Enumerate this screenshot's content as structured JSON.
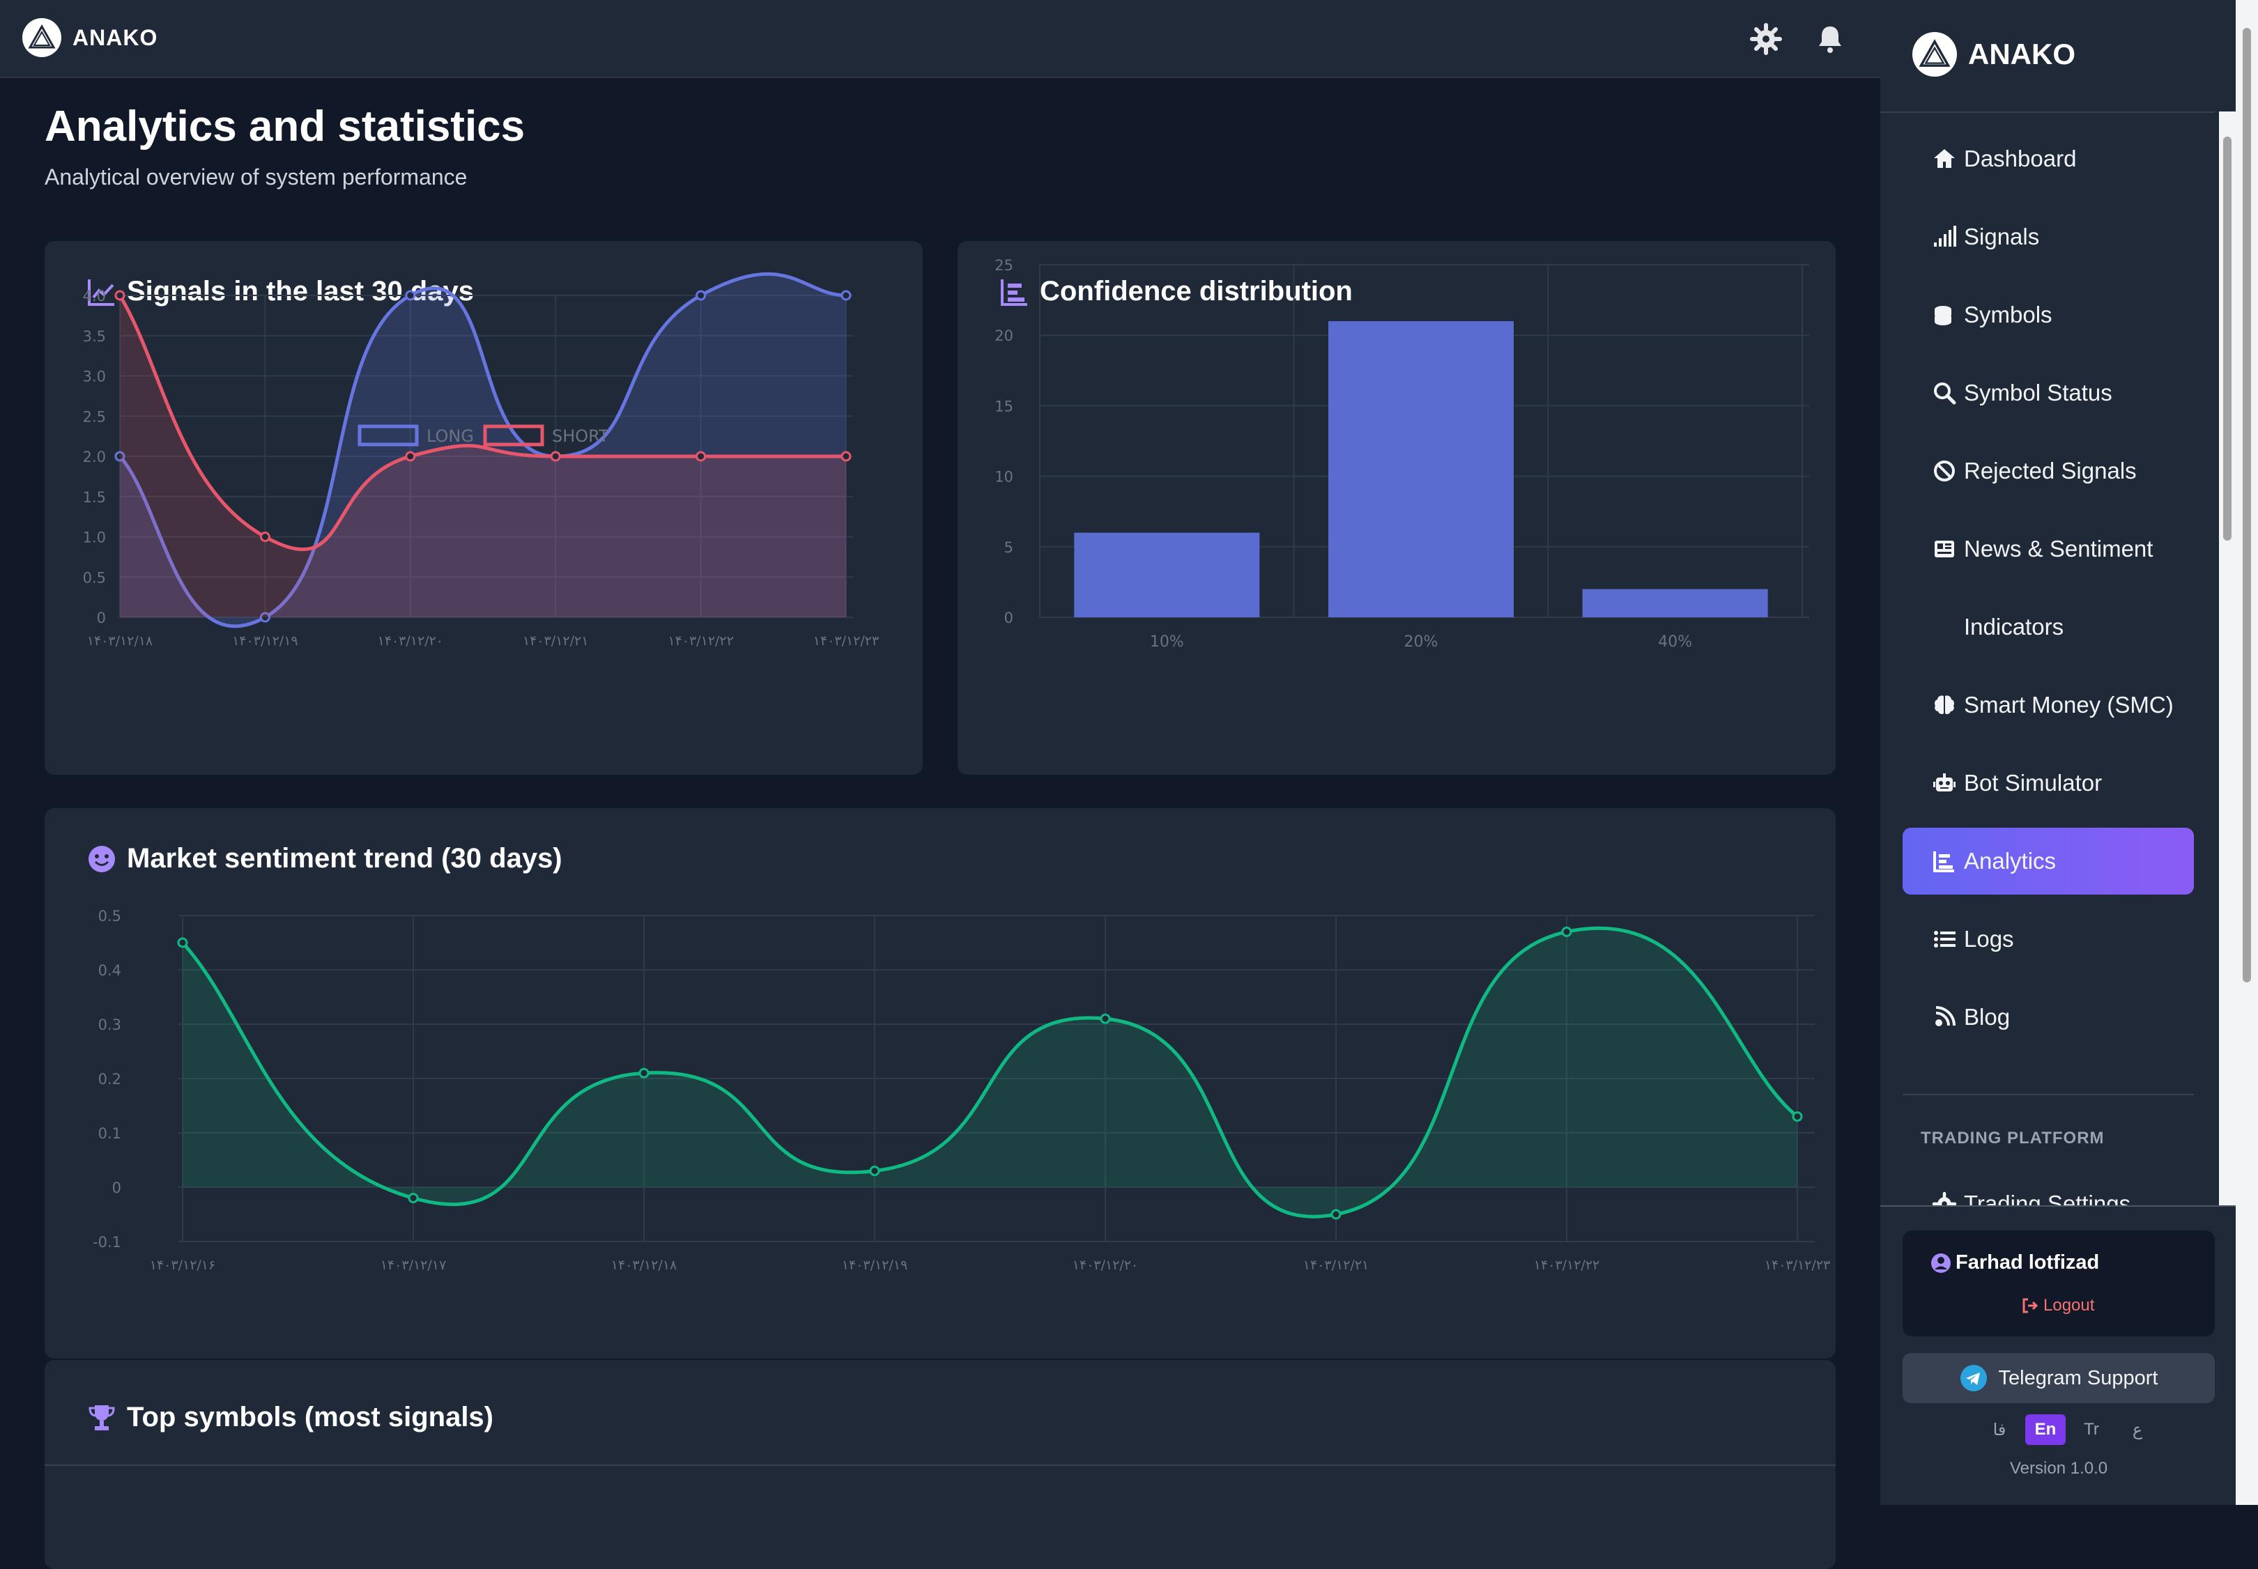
{
  "app": {
    "brand": "ANAKO"
  },
  "topbar": {
    "settings_icon": "gear-icon",
    "notifications_icon": "bell-icon"
  },
  "page": {
    "title": "Analytics and statistics",
    "subtitle": "Analytical overview of system performance"
  },
  "cards": {
    "signals": {
      "title": "Signals in the last 30 days",
      "icon": "chart-line-icon"
    },
    "confidence": {
      "title": "Confidence distribution",
      "icon": "chart-bar-icon"
    },
    "sentiment": {
      "title": "Market sentiment trend (30 days)",
      "icon": "smile-icon"
    },
    "top_symbols": {
      "title": "Top symbols (most signals)",
      "icon": "trophy-icon"
    }
  },
  "sidebar": {
    "brand": "ANAKO",
    "items": [
      {
        "label": "Dashboard",
        "icon": "home-icon"
      },
      {
        "label": "Signals",
        "icon": "signal-icon"
      },
      {
        "label": "Symbols",
        "icon": "coins-icon"
      },
      {
        "label": "Symbol Status",
        "icon": "search-icon"
      },
      {
        "label": "Rejected Signals",
        "icon": "ban-icon"
      },
      {
        "label": "News & Sentiment",
        "icon": "newspaper-icon"
      },
      {
        "label": "Indicators",
        "icon": ""
      },
      {
        "label": "Smart Money (SMC)",
        "icon": "brain-icon"
      },
      {
        "label": "Bot Simulator",
        "icon": "robot-icon"
      },
      {
        "label": "Analytics",
        "icon": "chart-bar-icon",
        "active": true
      },
      {
        "label": "Logs",
        "icon": "list-icon"
      },
      {
        "label": "Blog",
        "icon": "blog-icon"
      }
    ],
    "section_label": "TRADING PLATFORM",
    "section_items": [
      {
        "label": "Trading Settings",
        "icon": "gear-icon"
      }
    ],
    "user": {
      "name": "Farhad lotfizad",
      "logout": "Logout"
    },
    "telegram": "Telegram Support",
    "languages": [
      "فا",
      "En",
      "Tr",
      "ع"
    ],
    "active_language": "En",
    "version": "Version 1.0.0"
  },
  "colors": {
    "bg": "#111827",
    "card": "#1f2937",
    "long": "#6675e0",
    "short": "#e8566c",
    "bar": "#5a6cd0",
    "sentiment": "#10b981",
    "accent": "#8b5cf6"
  },
  "chart_data": [
    {
      "type": "line",
      "x": [
        "۱۴۰۳/۱۲/۱۸",
        "۱۴۰۳/۱۲/۱۹",
        "۱۴۰۳/۱۲/۲۰",
        "۱۴۰۳/۱۲/۲۱",
        "۱۴۰۳/۱۲/۲۲",
        "۱۴۰۳/۱۲/۲۳"
      ],
      "series": [
        {
          "name": "LONG",
          "values": [
            2,
            0,
            4,
            2,
            4,
            4
          ],
          "color": "#6675e0"
        },
        {
          "name": "SHORT",
          "values": [
            4,
            1,
            2,
            2,
            2,
            2
          ],
          "color": "#e8566c"
        }
      ],
      "ylim": [
        0,
        4
      ],
      "yticks": [
        "0",
        "0.5",
        "1.0",
        "1.5",
        "2.0",
        "2.5",
        "3.0",
        "3.5",
        "4.0"
      ],
      "legend": "top",
      "grid": true
    },
    {
      "type": "bar",
      "categories": [
        "10%",
        "20%",
        "40%"
      ],
      "values": [
        6,
        21,
        2
      ],
      "ylim": [
        0,
        25
      ],
      "yticks": [
        "0",
        "5",
        "10",
        "15",
        "20",
        "25"
      ],
      "grid": true
    },
    {
      "type": "area",
      "x": [
        "۱۴۰۳/۱۲/۱۶",
        "۱۴۰۳/۱۲/۱۷",
        "۱۴۰۳/۱۲/۱۸",
        "۱۴۰۳/۱۲/۱۹",
        "۱۴۰۳/۱۲/۲۰",
        "۱۴۰۳/۱۲/۲۱",
        "۱۴۰۳/۱۲/۲۲",
        "۱۴۰۳/۱۲/۲۳"
      ],
      "values": [
        0.45,
        -0.02,
        0.21,
        0.03,
        0.31,
        -0.05,
        0.47,
        0.13
      ],
      "ylim": [
        -0.1,
        0.5
      ],
      "yticks": [
        "-0.1",
        "0",
        "0.1",
        "0.2",
        "0.3",
        "0.4",
        "0.5"
      ],
      "grid": true
    }
  ]
}
